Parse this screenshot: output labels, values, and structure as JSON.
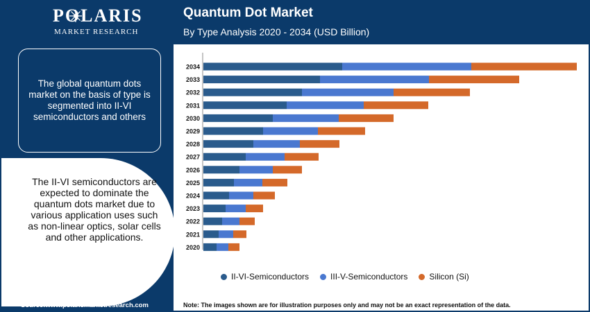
{
  "brand": {
    "name": "POLARIS",
    "tagline": "MARKET RESEARCH"
  },
  "header": {
    "title": "Quantum Dot Market",
    "subtitle": "By Type Analysis 2020 - 2034 (USD Billion)"
  },
  "sidebar": {
    "box_text": "The global quantum dots market on the basis of type is segmented into II-VI semiconductors and others",
    "circle_text": "The II-VI semiconductors are expected to dominate the quantum dots market due to various application uses such as non-linear optics, solar cells and other applications."
  },
  "footer": {
    "source": "Source:www.polarismarketresearch.com",
    "note": "Note: The images shown are for illustration purposes only and may not be an exact representation of the data."
  },
  "colors": {
    "navy": "#0b3a6a",
    "series1": "#2a5b8c",
    "series2": "#4a78d0",
    "series3": "#d4692a"
  },
  "chart_data": {
    "type": "bar",
    "orientation": "horizontal",
    "stacked": true,
    "categories": [
      "2034",
      "2033",
      "2032",
      "2031",
      "2030",
      "2029",
      "2028",
      "2027",
      "2026",
      "2025",
      "2024",
      "2023",
      "2022",
      "2021",
      "2020"
    ],
    "series": [
      {
        "name": "II-VI-Semiconductors",
        "color": "#2a5b8c",
        "values": [
          200,
          168,
          142,
          120,
          100,
          86,
          72,
          61,
          52,
          44,
          37,
          32,
          27,
          22,
          19
        ]
      },
      {
        "name": "III-V-Semiconductors",
        "color": "#4a78d0",
        "values": [
          186,
          157,
          132,
          111,
          95,
          79,
          67,
          56,
          48,
          41,
          35,
          29,
          25,
          21,
          17
        ]
      },
      {
        "name": "Silicon (Si)",
        "color": "#d4692a",
        "values": [
          152,
          130,
          110,
          93,
          79,
          68,
          57,
          49,
          42,
          36,
          31,
          25,
          22,
          19,
          16
        ]
      }
    ],
    "xlim": [
      0,
      540
    ],
    "legend_position": "bottom",
    "grid": false
  }
}
